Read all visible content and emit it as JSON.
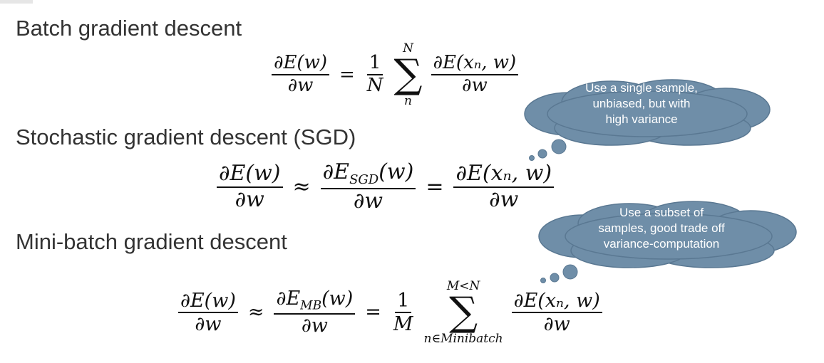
{
  "headings": {
    "batch": "Batch gradient descent",
    "sgd": "Stochastic gradient descent (SGD)",
    "minibatch": "Mini-batch gradient descent"
  },
  "eq_batch": {
    "lhs_num": "∂E(w)",
    "lhs_den": "∂w",
    "equals": "=",
    "coef_num": "1",
    "coef_den": "N",
    "sum_upper": "N",
    "sum_symbol": "∑",
    "sum_lower": "n",
    "term_num": "∂E(xₙ, w)",
    "term_den": "∂w"
  },
  "eq_sgd": {
    "lhs_num": "∂E(w)",
    "lhs_den": "∂w",
    "approx": "≈",
    "mid_num": "∂E",
    "mid_sub": "SGD",
    "mid_num_tail": "(w)",
    "mid_den": "∂w",
    "equals": "=",
    "rhs_num": "∂E(xₙ, w)",
    "rhs_den": "∂w"
  },
  "eq_minibatch": {
    "lhs_num": "∂E(w)",
    "lhs_den": "∂w",
    "approx": "≈",
    "mid_num": "∂E",
    "mid_sub": "MB",
    "mid_num_tail": "(w)",
    "mid_den": "∂w",
    "equals": "=",
    "coef_num": "1",
    "coef_den": "M",
    "sum_upper": "M<N",
    "sum_symbol": "∑",
    "sum_lower": "n∈Minibatch",
    "term_num": "∂E(xₙ, w)",
    "term_den": "∂w"
  },
  "bubbles": {
    "sgd": {
      "lines": [
        "Use a single sample,",
        "unbiased, but with",
        "high variance"
      ]
    },
    "minibatch": {
      "lines": [
        "Use a subset of",
        "samples, good trade off",
        "variance-computation"
      ]
    }
  },
  "colors": {
    "bubble_fill": "#6f8ea8",
    "bubble_stroke": "#5a7892",
    "heading": "#333333"
  }
}
